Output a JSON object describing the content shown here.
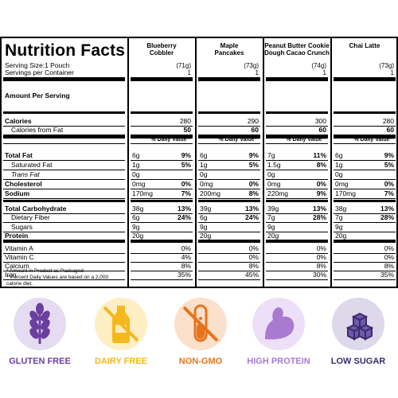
{
  "panel": {
    "title": "Nutrition Facts",
    "serving_size": "Serving Size:1 Pouch",
    "servings_per_container": "Servings per Container",
    "amount_per_serving": "Amount Per Serving",
    "footnote1": "* Amount in Product as Packaged",
    "footnote2a": "**Percent Daily Values are based on a 2,000",
    "footnote2b": "calorie diet."
  },
  "flavors": [
    {
      "name_line1": "Blueberry",
      "name_line2": "Cobbler",
      "serving_g": "(71g)",
      "servings": "1",
      "calories": "280",
      "cal_fat": "50",
      "total_fat": "6g",
      "total_fat_pct": "9%",
      "sat_fat": "1g",
      "sat_fat_pct": "5%",
      "trans_fat": "0g",
      "chol": "0mg",
      "chol_pct": "0%",
      "sodium": "170mg",
      "sodium_pct": "7%",
      "carb": "38g",
      "carb_pct": "13%",
      "fiber": "6g",
      "fiber_pct": "24%",
      "sugars": "9g",
      "protein": "20g",
      "vit_a": "0%",
      "vit_c": "4%",
      "calcium": "8%",
      "iron": "35%"
    },
    {
      "name_line1": "Maple",
      "name_line2": "Pancakes",
      "serving_g": "(73g)",
      "servings": "1",
      "calories": "290",
      "cal_fat": "60",
      "total_fat": "6g",
      "total_fat_pct": "9%",
      "sat_fat": "1g",
      "sat_fat_pct": "5%",
      "trans_fat": "0g",
      "chol": "0mg",
      "chol_pct": "0%",
      "sodium": "200mg",
      "sodium_pct": "8%",
      "carb": "39g",
      "carb_pct": "13%",
      "fiber": "6g",
      "fiber_pct": "24%",
      "sugars": "9g",
      "protein": "20g",
      "vit_a": "0%",
      "vit_c": "0%",
      "calcium": "8%",
      "iron": "45%"
    },
    {
      "name_line1": "Peanut Butter Cookie",
      "name_line2": "Dough Cacao Crunch",
      "serving_g": "(74g)",
      "servings": "1",
      "calories": "300",
      "cal_fat": "60",
      "total_fat": "7g",
      "total_fat_pct": "11%",
      "sat_fat": "1.5g",
      "sat_fat_pct": "8%",
      "trans_fat": "0g",
      "chol": "0mg",
      "chol_pct": "0%",
      "sodium": "220mg",
      "sodium_pct": "9%",
      "carb": "39g",
      "carb_pct": "13%",
      "fiber": "7g",
      "fiber_pct": "28%",
      "sugars": "9g",
      "protein": "20g",
      "vit_a": "0%",
      "vit_c": "0%",
      "calcium": "8%",
      "iron": "30%"
    },
    {
      "name_line1": "Chai Latte",
      "name_line2": "",
      "serving_g": "(73g)",
      "servings": "1",
      "calories": "280",
      "cal_fat": "60",
      "total_fat": "6g",
      "total_fat_pct": "9%",
      "sat_fat": "1g",
      "sat_fat_pct": "5%",
      "trans_fat": "0g",
      "chol": "0mg",
      "chol_pct": "0%",
      "sodium": "170mg",
      "sodium_pct": "7%",
      "carb": "38g",
      "carb_pct": "13%",
      "fiber": "7g",
      "fiber_pct": "28%",
      "sugars": "9g",
      "protein": "20g",
      "vit_a": "0%",
      "vit_c": "0%",
      "calcium": "8%",
      "iron": "35%"
    }
  ],
  "rows": {
    "calories": "Calories",
    "cal_fat": "Calories from Fat",
    "dv_header": "% Daily Value**",
    "total_fat": "Total Fat",
    "sat_fat": "Saturated Fat",
    "trans_fat": "Trans Fat",
    "chol": "Cholesterol",
    "sodium": "Sodium",
    "carb": "Total Carbohydrate",
    "fiber": "Dietary Fiber",
    "sugars": "Sugars",
    "protein": "Protein",
    "vit_a": "Vitamin A",
    "vit_c": "Vitamin C",
    "calcium": "Calcium",
    "iron": "Iron"
  },
  "badges": [
    {
      "label": "GLUTEN FREE",
      "color": "#6b3fa0",
      "icon": "wheat-icon"
    },
    {
      "label": "DAIRY FREE",
      "color": "#f5b81c",
      "icon": "milk-bottle-icon"
    },
    {
      "label": "NON-GMO",
      "color": "#e8731a",
      "icon": "test-tube-icon"
    },
    {
      "label": "HIGH PROTEIN",
      "color": "#a87ad0",
      "icon": "flexed-arm-icon"
    },
    {
      "label": "LOW SUGAR",
      "color": "#3c2a6e",
      "icon": "sugar-cubes-icon"
    }
  ]
}
